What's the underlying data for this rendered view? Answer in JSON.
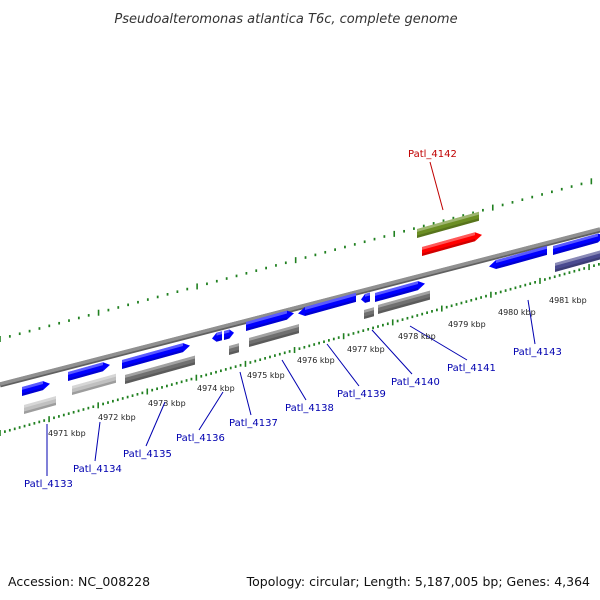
{
  "title": "Pseudoalteromonas atlantica T6c, complete genome",
  "accession_text": "Accession: NC_008228",
  "summary_text": "Topology: circular; Length: 5,187,005 bp; Genes: 4,364",
  "colors": {
    "backbone": "#909090",
    "tick": "#208020",
    "forward_cds": "#0000ff",
    "reverse_light": "#c0c0c0",
    "reverse_dark": "#707070",
    "reverse_purple": "#4a4a90",
    "highlight_gene": "#6b8e23",
    "highlight_rna": "#ff0000",
    "label_blue": "#0000b0",
    "label_red": "#c00000"
  },
  "scale_labels": [
    {
      "id": "kbp-4971",
      "text": "4971 kbp"
    },
    {
      "id": "kbp-4972",
      "text": "4972 kbp"
    },
    {
      "id": "kbp-4973",
      "text": "4973 kbp"
    },
    {
      "id": "kbp-4974",
      "text": "4974 kbp"
    },
    {
      "id": "kbp-4975",
      "text": "4975 kbp"
    },
    {
      "id": "kbp-4976",
      "text": "4976 kbp"
    },
    {
      "id": "kbp-4977",
      "text": "4977 kbp"
    },
    {
      "id": "kbp-4978",
      "text": "4978 kbp"
    },
    {
      "id": "kbp-4979",
      "text": "4979 kbp"
    },
    {
      "id": "kbp-4980",
      "text": "4980 kbp"
    },
    {
      "id": "kbp-4981",
      "text": "4981 kbp"
    }
  ],
  "gene_labels": [
    {
      "id": "patl-4133",
      "text": "Patl_4133",
      "color": "label_blue"
    },
    {
      "id": "patl-4134",
      "text": "Patl_4134",
      "color": "label_blue"
    },
    {
      "id": "patl-4135",
      "text": "Patl_4135",
      "color": "label_blue"
    },
    {
      "id": "patl-4136",
      "text": "Patl_4136",
      "color": "label_blue"
    },
    {
      "id": "patl-4137",
      "text": "Patl_4137",
      "color": "label_blue"
    },
    {
      "id": "patl-4138",
      "text": "Patl_4138",
      "color": "label_blue"
    },
    {
      "id": "patl-4139",
      "text": "Patl_4139",
      "color": "label_blue"
    },
    {
      "id": "patl-4140",
      "text": "Patl_4140",
      "color": "label_blue"
    },
    {
      "id": "patl-4141",
      "text": "Patl_4141",
      "color": "label_blue"
    },
    {
      "id": "patl-4142",
      "text": "Patl_4142",
      "color": "label_red"
    },
    {
      "id": "patl-4143",
      "text": "Patl_4143",
      "color": "label_blue"
    }
  ]
}
